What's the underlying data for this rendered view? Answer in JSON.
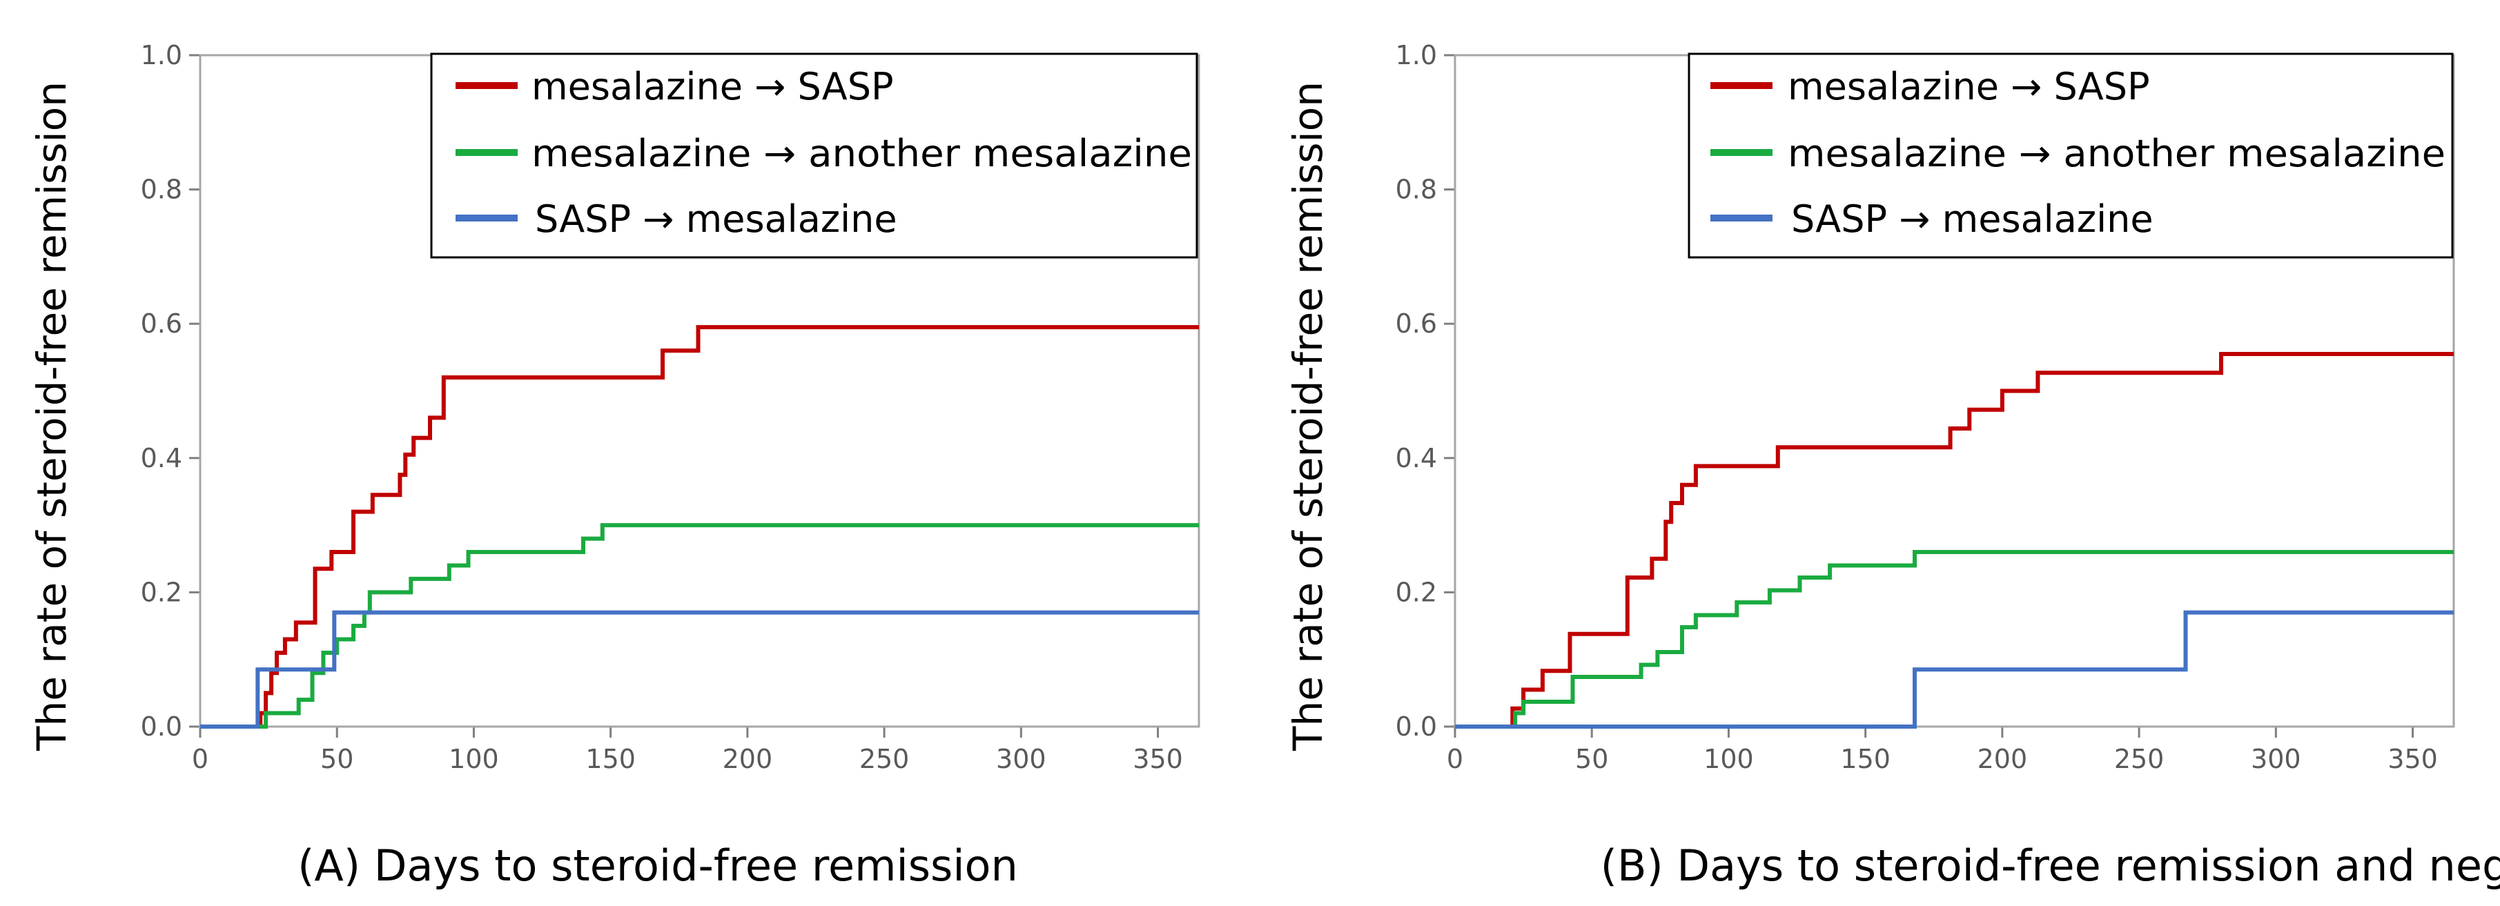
{
  "chart_data": [
    {
      "type": "line",
      "caption": "(A) Days to steroid-free remission",
      "ylabel": "The rate of steroid-free remission",
      "xlabel": "",
      "xlim": [
        0,
        365
      ],
      "ylim": [
        0,
        1.0
      ],
      "xticks": [
        0,
        50,
        100,
        150,
        200,
        250,
        300,
        350
      ],
      "yticks": [
        "0.0",
        "0.2",
        "0.4",
        "0.6",
        "0.8",
        "1.0"
      ],
      "legend_position": "top-right",
      "series": [
        {
          "name": "mesalazine → SASP",
          "color": "#c00000",
          "points": [
            [
              0,
              0
            ],
            [
              22,
              0
            ],
            [
              22,
              0.02
            ],
            [
              24,
              0.02
            ],
            [
              24,
              0.05
            ],
            [
              26,
              0.05
            ],
            [
              26,
              0.08
            ],
            [
              28,
              0.08
            ],
            [
              28,
              0.11
            ],
            [
              31,
              0.11
            ],
            [
              31,
              0.13
            ],
            [
              35,
              0.13
            ],
            [
              35,
              0.155
            ],
            [
              42,
              0.155
            ],
            [
              42,
              0.235
            ],
            [
              48,
              0.235
            ],
            [
              48,
              0.26
            ],
            [
              56,
              0.26
            ],
            [
              56,
              0.32
            ],
            [
              63,
              0.32
            ],
            [
              63,
              0.345
            ],
            [
              73,
              0.345
            ],
            [
              73,
              0.375
            ],
            [
              75,
              0.375
            ],
            [
              75,
              0.405
            ],
            [
              78,
              0.405
            ],
            [
              78,
              0.43
            ],
            [
              84,
              0.43
            ],
            [
              84,
              0.46
            ],
            [
              89,
              0.46
            ],
            [
              89,
              0.52
            ],
            [
              169,
              0.52
            ],
            [
              169,
              0.56
            ],
            [
              182,
              0.56
            ],
            [
              182,
              0.595
            ],
            [
              365,
              0.595
            ]
          ]
        },
        {
          "name": "mesalazine → another mesalazine",
          "color": "#1aab40",
          "points": [
            [
              0,
              0
            ],
            [
              24,
              0
            ],
            [
              24,
              0.02
            ],
            [
              36,
              0.02
            ],
            [
              36,
              0.04
            ],
            [
              41,
              0.04
            ],
            [
              41,
              0.08
            ],
            [
              45,
              0.08
            ],
            [
              45,
              0.11
            ],
            [
              50,
              0.11
            ],
            [
              50,
              0.13
            ],
            [
              56,
              0.13
            ],
            [
              56,
              0.15
            ],
            [
              60,
              0.15
            ],
            [
              60,
              0.17
            ],
            [
              62,
              0.17
            ],
            [
              62,
              0.2
            ],
            [
              77,
              0.2
            ],
            [
              77,
              0.22
            ],
            [
              91,
              0.22
            ],
            [
              91,
              0.24
            ],
            [
              98,
              0.24
            ],
            [
              98,
              0.26
            ],
            [
              140,
              0.26
            ],
            [
              140,
              0.28
            ],
            [
              147,
              0.28
            ],
            [
              147,
              0.3
            ],
            [
              365,
              0.3
            ]
          ]
        },
        {
          "name": "SASP → mesalazine",
          "color": "#4472c4",
          "points": [
            [
              0,
              0
            ],
            [
              21,
              0
            ],
            [
              21,
              0.085
            ],
            [
              49,
              0.085
            ],
            [
              49,
              0.17
            ],
            [
              365,
              0.17
            ]
          ]
        }
      ]
    },
    {
      "type": "line",
      "caption": "(B) Days to steroid-free remission and negative FIT",
      "ylabel": "The rate of steroid-free remission",
      "xlabel": "",
      "xlim": [
        0,
        365
      ],
      "ylim": [
        0,
        1.0
      ],
      "xticks": [
        0,
        50,
        100,
        150,
        200,
        250,
        300,
        350
      ],
      "yticks": [
        "0.0",
        "0.2",
        "0.4",
        "0.6",
        "0.8",
        "1.0"
      ],
      "legend_position": "top-right",
      "series": [
        {
          "name": "mesalazine → SASP",
          "color": "#c00000",
          "points": [
            [
              0,
              0
            ],
            [
              21,
              0
            ],
            [
              21,
              0.027
            ],
            [
              25,
              0.027
            ],
            [
              25,
              0.055
            ],
            [
              32,
              0.055
            ],
            [
              32,
              0.083
            ],
            [
              42,
              0.083
            ],
            [
              42,
              0.138
            ],
            [
              63,
              0.138
            ],
            [
              63,
              0.222
            ],
            [
              72,
              0.222
            ],
            [
              72,
              0.25
            ],
            [
              77,
              0.25
            ],
            [
              77,
              0.305
            ],
            [
              79,
              0.305
            ],
            [
              79,
              0.333
            ],
            [
              83,
              0.333
            ],
            [
              83,
              0.36
            ],
            [
              88,
              0.36
            ],
            [
              88,
              0.388
            ],
            [
              118,
              0.388
            ],
            [
              118,
              0.416
            ],
            [
              181,
              0.416
            ],
            [
              181,
              0.444
            ],
            [
              188,
              0.444
            ],
            [
              188,
              0.472
            ],
            [
              200,
              0.472
            ],
            [
              200,
              0.5
            ],
            [
              213,
              0.5
            ],
            [
              213,
              0.527
            ],
            [
              280,
              0.527
            ],
            [
              280,
              0.555
            ],
            [
              365,
              0.555
            ]
          ]
        },
        {
          "name": "mesalazine → another mesalazine",
          "color": "#1aab40",
          "points": [
            [
              0,
              0
            ],
            [
              22,
              0
            ],
            [
              22,
              0.02
            ],
            [
              25,
              0.02
            ],
            [
              25,
              0.037
            ],
            [
              43,
              0.037
            ],
            [
              43,
              0.074
            ],
            [
              68,
              0.074
            ],
            [
              68,
              0.092
            ],
            [
              74,
              0.092
            ],
            [
              74,
              0.111
            ],
            [
              83,
              0.111
            ],
            [
              83,
              0.148
            ],
            [
              88,
              0.148
            ],
            [
              88,
              0.166
            ],
            [
              103,
              0.166
            ],
            [
              103,
              0.185
            ],
            [
              115,
              0.185
            ],
            [
              115,
              0.203
            ],
            [
              126,
              0.203
            ],
            [
              126,
              0.222
            ],
            [
              137,
              0.222
            ],
            [
              137,
              0.24
            ],
            [
              168,
              0.24
            ],
            [
              168,
              0.26
            ],
            [
              365,
              0.26
            ]
          ]
        },
        {
          "name": "SASP → mesalazine",
          "color": "#4472c4",
          "points": [
            [
              0,
              0
            ],
            [
              168,
              0
            ],
            [
              168,
              0.085
            ],
            [
              267,
              0.085
            ],
            [
              267,
              0.17
            ],
            [
              365,
              0.17
            ]
          ]
        }
      ]
    }
  ]
}
